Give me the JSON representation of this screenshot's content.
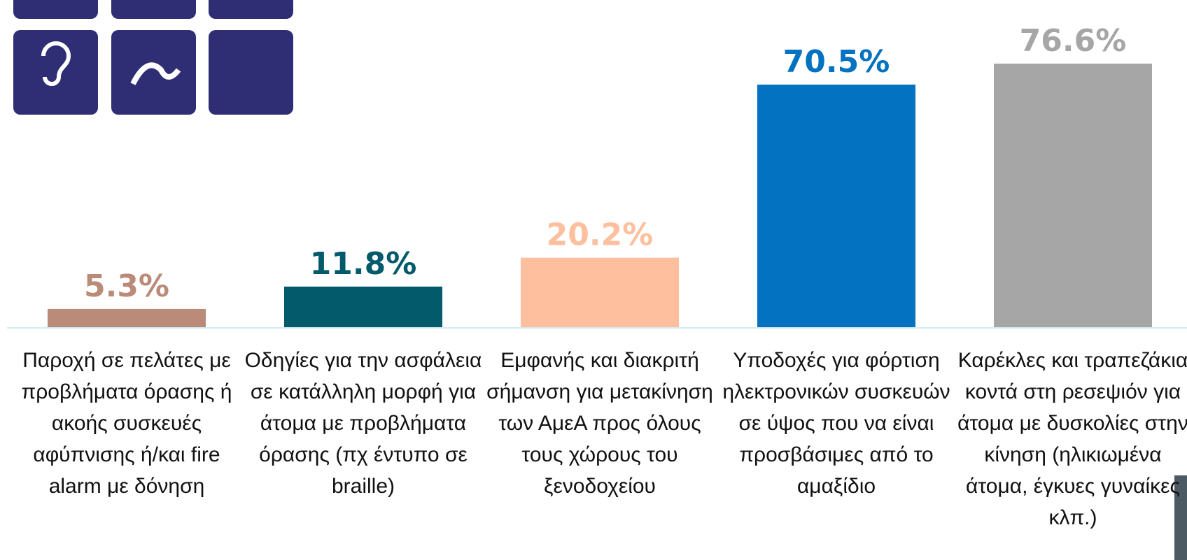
{
  "chart_data": {
    "type": "bar",
    "categories": [
      "Παροχή σε πελάτες με προβλήματα όρασης ή ακοής συσκευές αφύπνισης ή/και fire alarm με δόνηση",
      "Οδηγίες για την ασφάλεια σε κατάλληλη μορφή για άτομα με προβλήματα όρασης (πχ έντυπο σε braille)",
      "Εμφανής και διακριτή σήμανση για μετακίνηση των ΑμεΑ προς όλους τους χώρους του ξενοδοχείου",
      "Υποδοχές για φόρτιση ηλεκτρονικών συσκευών σε ύψος που να είναι προσβάσιμες από το αμαξίδιο",
      "Καρέκλες και τραπεζάκια κοντά στη ρεσεψιόν για άτομα με δυσκολίες στην κίνηση (ηλικιωμένα άτομα, έγκυες γυναίκες κλπ.)"
    ],
    "values": [
      5.3,
      11.8,
      20.2,
      70.5,
      76.6
    ],
    "value_labels": [
      "5.3%",
      "11.8%",
      "20.2%",
      "70.5%",
      "76.6%"
    ],
    "colors": [
      "#b98b78",
      "#035a6b",
      "#fdbf9d",
      "#0272c1",
      "#a6a6a6"
    ],
    "icons": {
      "cc": "CC"
    }
  }
}
